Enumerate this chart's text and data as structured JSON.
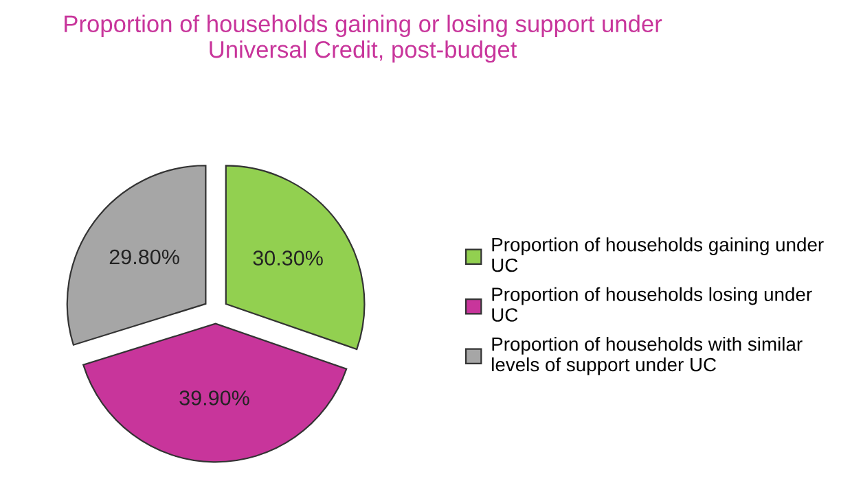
{
  "chart_data": {
    "type": "pie",
    "title": "Proportion of households gaining or losing support under\nUniversal Credit, post-budget",
    "categories": [
      "Proportion of households gaining under\nUC",
      "Proportion of households losing under\nUC",
      "Proportion of households with similar\nlevels of support under UC"
    ],
    "values": [
      30.3,
      39.9,
      29.8
    ],
    "value_labels": [
      "30.30%",
      "39.90%",
      "29.80%"
    ],
    "colors": [
      "#92d050",
      "#c8359b",
      "#a6a6a6"
    ],
    "legend": "right"
  }
}
